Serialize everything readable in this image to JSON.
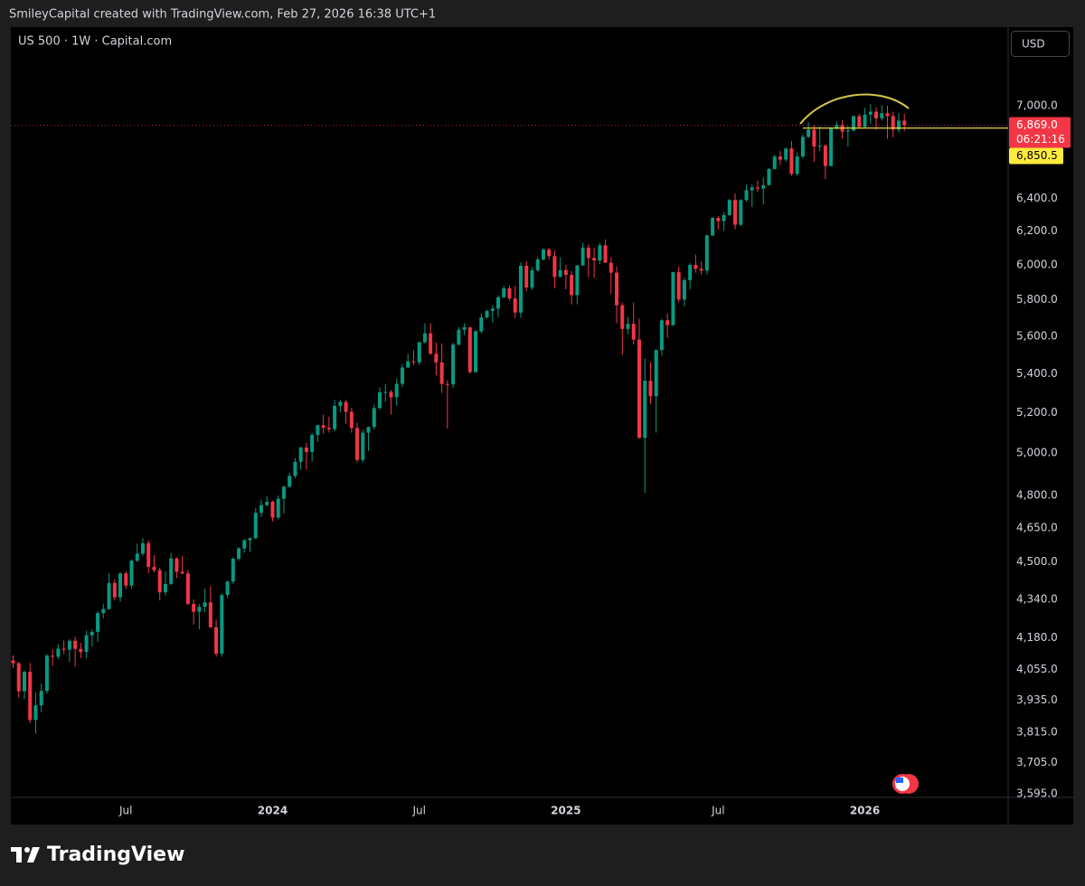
{
  "header": {
    "caption": "SmileyCapital created with TradingView.com, Feb 27, 2026 16:38 UTC+1",
    "currency": "USD"
  },
  "footer": {
    "brand": "TradingView"
  },
  "chart_data": {
    "type": "candlestick",
    "title": "US 500 · 1W · Capital.com",
    "up_color": "#089981",
    "down_color": "#f23645",
    "log_scale": true,
    "grid": false,
    "xlim": [
      -0.4,
      176.4
    ],
    "ylim": [
      3582,
      7554
    ],
    "xticks": [
      {
        "value": 20,
        "label": "Jul"
      },
      {
        "value": 46,
        "label": "2024"
      },
      {
        "value": 72,
        "label": "Jul"
      },
      {
        "value": 98,
        "label": "2025"
      },
      {
        "value": 125,
        "label": "Jul"
      },
      {
        "value": 151,
        "label": "2026"
      }
    ],
    "yticks": [
      {
        "value": 3595,
        "label": "3,595.0"
      },
      {
        "value": 3705,
        "label": "3,705.0"
      },
      {
        "value": 3815,
        "label": "3,815.0"
      },
      {
        "value": 3935,
        "label": "3,935.0"
      },
      {
        "value": 4055,
        "label": "4,055.0"
      },
      {
        "value": 4180,
        "label": "4,180.0"
      },
      {
        "value": 4340,
        "label": "4,340.0"
      },
      {
        "value": 4500,
        "label": "4,500.0"
      },
      {
        "value": 4650,
        "label": "4,650.0"
      },
      {
        "value": 4800,
        "label": "4,800.0"
      },
      {
        "value": 5000,
        "label": "5,000.0"
      },
      {
        "value": 5200,
        "label": "5,200.0"
      },
      {
        "value": 5400,
        "label": "5,400.0"
      },
      {
        "value": 5600,
        "label": "5,600.0"
      },
      {
        "value": 5800,
        "label": "5,800.0"
      },
      {
        "value": 6000,
        "label": "6,000.0"
      },
      {
        "value": 6200,
        "label": "6,200.0"
      },
      {
        "value": 6400,
        "label": "6,400.0"
      },
      {
        "value": 7000,
        "label": "7,000.0"
      }
    ],
    "last_price": {
      "value": 6869.0,
      "label": "6,869.0",
      "color": "#f23645"
    },
    "countdown": "06:21:16",
    "level": {
      "value": 6850.5,
      "label": "6,850.5",
      "color": "#ffeb3b"
    },
    "ohlc": [
      [
        4090,
        4110,
        4060,
        4079
      ],
      [
        4079,
        4085,
        3945,
        3970
      ],
      [
        3970,
        4050,
        3940,
        4045
      ],
      [
        4045,
        4080,
        3850,
        3861
      ],
      [
        3861,
        3965,
        3810,
        3916
      ],
      [
        3916,
        4000,
        3890,
        3971
      ],
      [
        3971,
        4115,
        3960,
        4109
      ],
      [
        4109,
        4135,
        4070,
        4105
      ],
      [
        4105,
        4155,
        4095,
        4137
      ],
      [
        4137,
        4170,
        4115,
        4133
      ],
      [
        4133,
        4175,
        4085,
        4169
      ],
      [
        4169,
        4185,
        4065,
        4136
      ],
      [
        4136,
        4160,
        4100,
        4124
      ],
      [
        4124,
        4210,
        4100,
        4191
      ],
      [
        4191,
        4215,
        4145,
        4205
      ],
      [
        4205,
        4290,
        4165,
        4282
      ],
      [
        4282,
        4320,
        4260,
        4299
      ],
      [
        4299,
        4450,
        4295,
        4409
      ],
      [
        4409,
        4425,
        4335,
        4348
      ],
      [
        4348,
        4455,
        4330,
        4450
      ],
      [
        4450,
        4460,
        4385,
        4398
      ],
      [
        4398,
        4510,
        4385,
        4505
      ],
      [
        4505,
        4580,
        4500,
        4536
      ],
      [
        4536,
        4605,
        4525,
        4582
      ],
      [
        4582,
        4595,
        4450,
        4478
      ],
      [
        4478,
        4530,
        4455,
        4464
      ],
      [
        4464,
        4475,
        4335,
        4369
      ],
      [
        4369,
        4460,
        4355,
        4405
      ],
      [
        4405,
        4540,
        4400,
        4515
      ],
      [
        4515,
        4520,
        4430,
        4457
      ],
      [
        4457,
        4525,
        4445,
        4450
      ],
      [
        4450,
        4465,
        4315,
        4320
      ],
      [
        4320,
        4340,
        4235,
        4288
      ],
      [
        4288,
        4320,
        4215,
        4308
      ],
      [
        4308,
        4385,
        4285,
        4327
      ],
      [
        4327,
        4395,
        4220,
        4224
      ],
      [
        4224,
        4255,
        4105,
        4117
      ],
      [
        4117,
        4365,
        4105,
        4358
      ],
      [
        4358,
        4420,
        4345,
        4415
      ],
      [
        4415,
        4520,
        4405,
        4514
      ],
      [
        4514,
        4565,
        4505,
        4559
      ],
      [
        4559,
        4600,
        4540,
        4595
      ],
      [
        4595,
        4610,
        4545,
        4604
      ],
      [
        4604,
        4740,
        4600,
        4719
      ],
      [
        4719,
        4780,
        4700,
        4754
      ],
      [
        4754,
        4795,
        4750,
        4770
      ],
      [
        4770,
        4775,
        4680,
        4697
      ],
      [
        4697,
        4800,
        4690,
        4784
      ],
      [
        4784,
        4845,
        4715,
        4840
      ],
      [
        4840,
        4905,
        4835,
        4891
      ],
      [
        4891,
        4975,
        4880,
        4958
      ],
      [
        4958,
        5030,
        4920,
        5027
      ],
      [
        5027,
        5050,
        4920,
        5006
      ],
      [
        5006,
        5100,
        4960,
        5089
      ],
      [
        5089,
        5140,
        5055,
        5137
      ],
      [
        5137,
        5190,
        5095,
        5124
      ],
      [
        5124,
        5180,
        5100,
        5117
      ],
      [
        5117,
        5265,
        5105,
        5234
      ],
      [
        5234,
        5265,
        5200,
        5254
      ],
      [
        5254,
        5265,
        5145,
        5204
      ],
      [
        5204,
        5225,
        5100,
        5123
      ],
      [
        5123,
        5150,
        4955,
        4967
      ],
      [
        4967,
        5115,
        4955,
        5100
      ],
      [
        5100,
        5130,
        5010,
        5128
      ],
      [
        5128,
        5240,
        5115,
        5223
      ],
      [
        5223,
        5330,
        5215,
        5303
      ],
      [
        5303,
        5345,
        5255,
        5305
      ],
      [
        5305,
        5315,
        5190,
        5278
      ],
      [
        5278,
        5375,
        5235,
        5347
      ],
      [
        5347,
        5450,
        5330,
        5432
      ],
      [
        5432,
        5505,
        5430,
        5465
      ],
      [
        5465,
        5525,
        5445,
        5460
      ],
      [
        5460,
        5570,
        5445,
        5567
      ],
      [
        5567,
        5670,
        5560,
        5615
      ],
      [
        5615,
        5670,
        5500,
        5505
      ],
      [
        5505,
        5565,
        5390,
        5459
      ],
      [
        5459,
        5560,
        5300,
        5346
      ],
      [
        5346,
        5365,
        5120,
        5344
      ],
      [
        5344,
        5565,
        5325,
        5554
      ],
      [
        5554,
        5650,
        5550,
        5634
      ],
      [
        5634,
        5670,
        5605,
        5648
      ],
      [
        5648,
        5650,
        5400,
        5408
      ],
      [
        5408,
        5635,
        5405,
        5626
      ],
      [
        5626,
        5725,
        5615,
        5703
      ],
      [
        5703,
        5745,
        5695,
        5738
      ],
      [
        5738,
        5770,
        5675,
        5751
      ],
      [
        5751,
        5825,
        5705,
        5815
      ],
      [
        5815,
        5880,
        5810,
        5865
      ],
      [
        5865,
        5880,
        5795,
        5808
      ],
      [
        5808,
        5880,
        5700,
        5729
      ],
      [
        5729,
        6015,
        5700,
        5995
      ],
      [
        5995,
        6020,
        5850,
        5870
      ],
      [
        5870,
        5985,
        5855,
        5969
      ],
      [
        5969,
        6045,
        5960,
        6032
      ],
      [
        6032,
        6100,
        6025,
        6090
      ],
      [
        6090,
        6100,
        6030,
        6051
      ],
      [
        6051,
        6085,
        5865,
        5930
      ],
      [
        5930,
        6045,
        5930,
        5970
      ],
      [
        5970,
        6000,
        5860,
        5942
      ],
      [
        5942,
        5965,
        5775,
        5827
      ],
      [
        5827,
        6000,
        5775,
        5997
      ],
      [
        5997,
        6130,
        5995,
        6101
      ],
      [
        6101,
        6120,
        5930,
        6040
      ],
      [
        6040,
        6100,
        5925,
        6026
      ],
      [
        6026,
        6130,
        6005,
        6115
      ],
      [
        6115,
        6150,
        6010,
        6013
      ],
      [
        6013,
        6045,
        5835,
        5955
      ],
      [
        5955,
        5990,
        5670,
        5770
      ],
      [
        5770,
        5785,
        5500,
        5639
      ],
      [
        5639,
        5705,
        5610,
        5667
      ],
      [
        5667,
        5785,
        5555,
        5581
      ],
      [
        5581,
        5695,
        5070,
        5074
      ],
      [
        5074,
        5480,
        4810,
        5363
      ],
      [
        5363,
        5460,
        5245,
        5283
      ],
      [
        5283,
        5530,
        5100,
        5525
      ],
      [
        5525,
        5695,
        5495,
        5686
      ],
      [
        5686,
        5725,
        5590,
        5660
      ],
      [
        5660,
        5960,
        5655,
        5958
      ],
      [
        5958,
        5990,
        5785,
        5802
      ],
      [
        5802,
        5925,
        5765,
        5912
      ],
      [
        5912,
        6010,
        5860,
        6000
      ],
      [
        6000,
        6060,
        5955,
        5977
      ],
      [
        5977,
        6020,
        5945,
        5967
      ],
      [
        5967,
        6180,
        5945,
        6173
      ],
      [
        6173,
        6285,
        6170,
        6279
      ],
      [
        6279,
        6290,
        6210,
        6260
      ],
      [
        6260,
        6315,
        6200,
        6297
      ],
      [
        6297,
        6395,
        6290,
        6389
      ],
      [
        6389,
        6430,
        6210,
        6238
      ],
      [
        6238,
        6395,
        6230,
        6389
      ],
      [
        6389,
        6485,
        6380,
        6450
      ],
      [
        6450,
        6485,
        6345,
        6467
      ],
      [
        6467,
        6510,
        6440,
        6460
      ],
      [
        6460,
        6530,
        6360,
        6482
      ],
      [
        6482,
        6590,
        6480,
        6584
      ],
      [
        6584,
        6675,
        6580,
        6664
      ],
      [
        6664,
        6700,
        6610,
        6644
      ],
      [
        6644,
        6720,
        6630,
        6716
      ],
      [
        6716,
        6765,
        6540,
        6553
      ],
      [
        6553,
        6690,
        6540,
        6664
      ],
      [
        6664,
        6810,
        6650,
        6792
      ],
      [
        6792,
        6890,
        6785,
        6840
      ],
      [
        6840,
        6870,
        6630,
        6729
      ],
      [
        6729,
        6860,
        6700,
        6734
      ],
      [
        6734,
        6745,
        6520,
        6603
      ],
      [
        6603,
        6855,
        6600,
        6849
      ],
      [
        6849,
        6895,
        6840,
        6870
      ],
      [
        6870,
        6905,
        6780,
        6827
      ],
      [
        6827,
        6865,
        6730,
        6834
      ],
      [
        6834,
        6935,
        6830,
        6930
      ],
      [
        6930,
        6945,
        6845,
        6858
      ],
      [
        6858,
        6985,
        6850,
        6940
      ],
      [
        6940,
        7010,
        6880,
        6960
      ],
      [
        6960,
        6990,
        6840,
        6915
      ],
      [
        6915,
        7005,
        6900,
        6950
      ],
      [
        6950,
        7000,
        6780,
        6930
      ],
      [
        6930,
        6960,
        6790,
        6840
      ],
      [
        6840,
        6950,
        6820,
        6900
      ],
      [
        6900,
        6945,
        6830,
        6869
      ]
    ]
  }
}
